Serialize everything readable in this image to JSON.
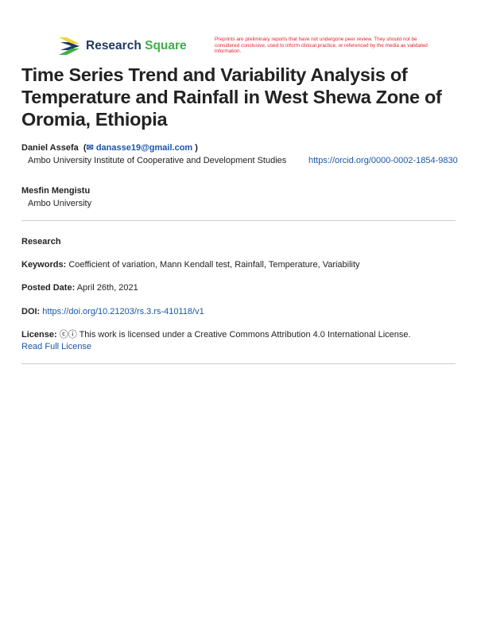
{
  "header": {
    "brand_part1": "Research",
    "brand_part2": "Square",
    "notice": "Preprints are preliminary reports that have not undergone peer review. They should not be considered conclusive, used to inform clinical practice, or referenced by the media as validated information.",
    "colors": {
      "brand_dark": "#1e3a5f",
      "brand_green": "#3fae49",
      "notice": "#e8202a",
      "link": "#1a56a8"
    }
  },
  "title": "Time Series Trend and Variability Analysis of Temperature and Rainfall in West Shewa Zone of Oromia, Ethiopia",
  "authors": [
    {
      "name": "Daniel Assefa",
      "email": "danasse19@gmail.com",
      "affiliation": "Ambo University Institute of Cooperative and Development Studies",
      "orcid": "https://orcid.org/0000-0002-1854-9830"
    },
    {
      "name": "Mesfin Mengistu",
      "affiliation": "Ambo University"
    }
  ],
  "meta": {
    "type": "Research",
    "keywords_label": "Keywords:",
    "keywords": "Coefficient of variation, Mann Kendall test, Rainfall, Temperature, Variability",
    "posted_label": "Posted Date:",
    "posted": "April 26th, 2021",
    "doi_label": "DOI:",
    "doi": "https://doi.org/10.21203/rs.3.rs-410118/v1",
    "license_label": "License:",
    "license_text": "This work is licensed under a Creative Commons Attribution 4.0 International License.",
    "license_link": "Read Full License"
  }
}
